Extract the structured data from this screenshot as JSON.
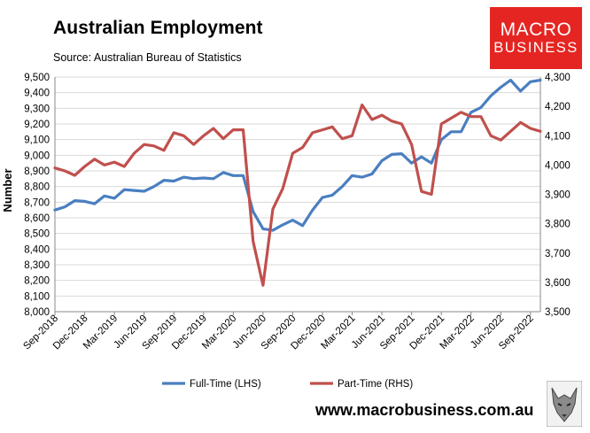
{
  "header": {
    "title": "Australian Employment",
    "source": "Source: Australian Bureau of Statistics"
  },
  "logo": {
    "line1": "MACRO",
    "line2": "BUSINESS"
  },
  "footer": {
    "url": "www.macrobusiness.com.au"
  },
  "colors": {
    "full_time": "#4a7fc1",
    "part_time": "#c0504d",
    "logo_bg": "#e52521",
    "grid": "#d9d9d9"
  },
  "chart_data": {
    "type": "line",
    "ylabel": "Number",
    "left_axis": {
      "min": 8000,
      "max": 9500,
      "step": 100,
      "ticks": [
        "8,000",
        "8,100",
        "8,200",
        "8,300",
        "8,400",
        "8,500",
        "8,600",
        "8,700",
        "8,800",
        "8,900",
        "9,000",
        "9,100",
        "9,200",
        "9,300",
        "9,400",
        "9,500"
      ]
    },
    "right_axis": {
      "min": 3500,
      "max": 4300,
      "step": 100,
      "ticks": [
        "3,500",
        "3,600",
        "3,700",
        "3,800",
        "3,900",
        "4,000",
        "4,100",
        "4,200",
        "4,300"
      ]
    },
    "x_labels": [
      {
        "index": 0,
        "label": "Sep-2018"
      },
      {
        "index": 3,
        "label": "Dec-2018"
      },
      {
        "index": 6,
        "label": "Mar-2019"
      },
      {
        "index": 9,
        "label": "Jun-2019"
      },
      {
        "index": 12,
        "label": "Sep-2019"
      },
      {
        "index": 15,
        "label": "Dec-2019"
      },
      {
        "index": 18,
        "label": "Mar-2020"
      },
      {
        "index": 21,
        "label": "Jun-2020"
      },
      {
        "index": 24,
        "label": "Sep-2020"
      },
      {
        "index": 27,
        "label": "Dec-2020"
      },
      {
        "index": 30,
        "label": "Mar-2021"
      },
      {
        "index": 33,
        "label": "Jun-2021"
      },
      {
        "index": 36,
        "label": "Sep-2021"
      },
      {
        "index": 39,
        "label": "Dec-2021"
      },
      {
        "index": 42,
        "label": "Mar-2022"
      },
      {
        "index": 45,
        "label": "Jun-2022"
      },
      {
        "index": 48,
        "label": "Sep-2022"
      }
    ],
    "grid": true,
    "legend_position": "bottom",
    "series": [
      {
        "name": "Full-Time (LHS)",
        "axis": "left",
        "values": [
          8650,
          8670,
          8710,
          8705,
          8690,
          8740,
          8725,
          8780,
          8775,
          8770,
          8800,
          8840,
          8835,
          8860,
          8850,
          8855,
          8850,
          8890,
          8870,
          8870,
          8640,
          8530,
          8520,
          8555,
          8585,
          8550,
          8650,
          8730,
          8745,
          8800,
          8870,
          8860,
          8880,
          8965,
          9005,
          9010,
          8950,
          8990,
          8950,
          9100,
          9150,
          9150,
          9275,
          9305,
          9380,
          9435,
          9480,
          9410,
          9470,
          9480
        ]
      },
      {
        "name": "Part-Time (RHS)",
        "axis": "right",
        "values": [
          3990,
          3980,
          3965,
          3995,
          4020,
          4000,
          4010,
          3995,
          4040,
          4070,
          4065,
          4050,
          4110,
          4100,
          4070,
          4100,
          4125,
          4090,
          4120,
          4120,
          3740,
          3590,
          3850,
          3920,
          4040,
          4060,
          4110,
          4120,
          4130,
          4090,
          4100,
          4205,
          4155,
          4170,
          4150,
          4140,
          4070,
          3910,
          3900,
          4140,
          4160,
          4180,
          4165,
          4165,
          4100,
          4085,
          4115,
          4145,
          4125,
          4115
        ]
      }
    ]
  }
}
